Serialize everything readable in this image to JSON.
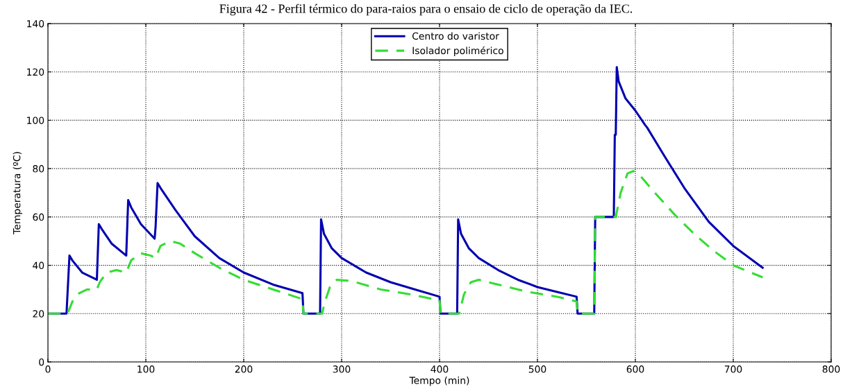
{
  "chart_data": {
    "type": "line",
    "title": "Figura 42 - Perfil térmico do para-raios para o ensaio de ciclo de operação da IEC.",
    "xlabel": "Tempo (min)",
    "ylabel": "Temperatura (ºC)",
    "xlim": [
      0,
      800
    ],
    "xticks": [
      0,
      100,
      200,
      300,
      400,
      500,
      600,
      700,
      800
    ],
    "ylim": [
      0,
      140
    ],
    "yticks": [
      0,
      20,
      40,
      60,
      80,
      100,
      120,
      140
    ],
    "grid": true,
    "legend": "top",
    "marker": "none",
    "series": [
      {
        "name": "Centro do varistor",
        "color": "#0000b0",
        "line_style": "solid",
        "x": [
          0,
          19,
          22,
          25,
          35,
          50,
          52,
          55,
          65,
          80,
          82,
          85,
          95,
          109,
          110,
          112,
          115,
          130,
          150,
          175,
          200,
          230,
          260,
          261,
          278,
          279,
          282,
          290,
          300,
          325,
          350,
          375,
          400,
          401,
          418,
          419,
          422,
          430,
          440,
          460,
          480,
          500,
          520,
          540,
          541,
          558,
          559,
          578,
          579,
          580,
          581,
          583,
          590,
          600,
          610,
          612,
          630,
          650,
          675,
          700,
          730
        ],
        "values": [
          20,
          20,
          44,
          42,
          37,
          34,
          57,
          55,
          49,
          44,
          67,
          64,
          57,
          51,
          56,
          74,
          72,
          63,
          52,
          43,
          37,
          32,
          28.5,
          20,
          20,
          59,
          53,
          47,
          43,
          37,
          33,
          30,
          27,
          20,
          20,
          59,
          53,
          47,
          43,
          38,
          34,
          31,
          29,
          27,
          20,
          20,
          60,
          60,
          94,
          94,
          122,
          116,
          109,
          104,
          98,
          97,
          85,
          72,
          58,
          48,
          39
        ]
      },
      {
        "name": "Isolador polimérico",
        "color": "#33dd33",
        "line_style": "dashed",
        "x": [
          0,
          20,
          25,
          30,
          40,
          50,
          53,
          60,
          70,
          80,
          85,
          95,
          105,
          110,
          115,
          125,
          135,
          150,
          175,
          200,
          230,
          260,
          261,
          280,
          283,
          288,
          295,
          310,
          340,
          370,
          400,
          401,
          420,
          425,
          432,
          440,
          460,
          490,
          520,
          540,
          541,
          558,
          559,
          580,
          585,
          592,
          598,
          605,
          620,
          640,
          660,
          680,
          700,
          730
        ],
        "values": [
          20,
          20,
          25,
          28,
          30,
          30,
          33,
          37,
          38,
          37,
          42,
          45,
          44,
          43,
          48,
          50,
          49,
          45,
          39,
          34,
          30,
          26,
          20,
          20,
          25,
          31,
          34,
          33.5,
          30,
          28,
          25.5,
          20,
          20,
          28,
          33,
          34,
          32,
          29,
          27,
          25,
          20,
          20,
          60,
          60,
          70,
          78,
          79,
          77,
          70,
          61,
          53,
          46,
          40,
          35
        ]
      }
    ]
  }
}
